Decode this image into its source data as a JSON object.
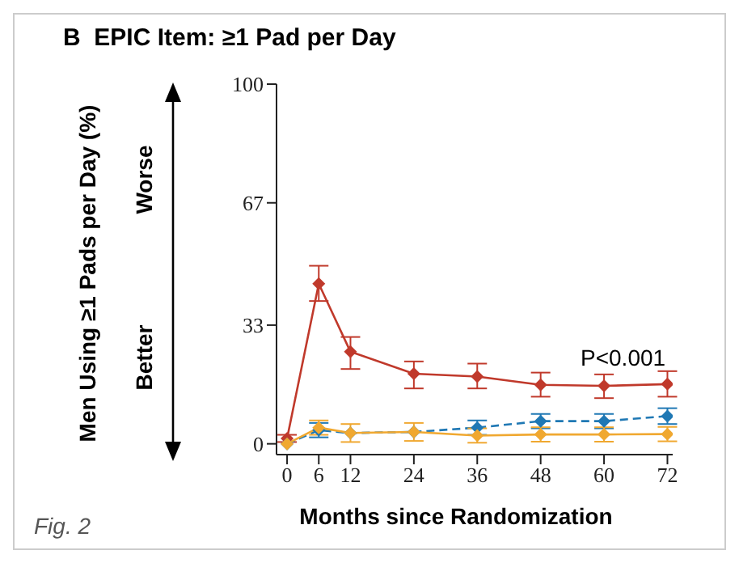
{
  "chart_data": {
    "type": "line",
    "title": "B  EPIC Item: ≥1 Pad per Day",
    "xlabel": "Months since Randomization",
    "annotations": [
      "Men Using ≥1 Pads per Day (%)",
      "Worse",
      "Better",
      "P<0.001",
      "Fig. 2"
    ],
    "x": [
      0,
      6,
      12,
      24,
      36,
      48,
      60,
      72
    ],
    "series": [
      {
        "color": "#c0392b",
        "values": [
          1.5,
          44.5,
          25.6,
          19.5,
          18.7,
          16.4,
          16.1,
          16.6
        ],
        "errors": [
          [
            0.5,
            2.5
          ],
          [
            39.7,
            49.5
          ],
          [
            20.8,
            29.7
          ],
          [
            15.4,
            22.9
          ],
          [
            15.4,
            22.3
          ],
          [
            13.1,
            19.8
          ],
          [
            12.7,
            19.3
          ],
          [
            13.1,
            20.2
          ]
        ],
        "line_style": "solid"
      },
      {
        "color": "#1f78b4",
        "values": [
          0,
          3.8,
          3.0,
          3.3,
          4.5,
          6.3,
          6.3,
          7.7
        ],
        "errors": [
          null,
          2,
          null,
          null,
          2,
          2,
          2,
          2.2
        ],
        "line_style": "dashed"
      },
      {
        "color": "#f0a830",
        "values": [
          0,
          4.5,
          3.0,
          3.3,
          2.3,
          2.6,
          2.6,
          2.7
        ],
        "errors": [
          null,
          2,
          2.5,
          2.5,
          2,
          2,
          2,
          2
        ],
        "line_style": "solid"
      }
    ],
    "xlim": [
      -2,
      73
    ],
    "ylim": [
      -3,
      100
    ],
    "xticks": [
      0,
      6,
      12,
      24,
      36,
      48,
      60,
      72
    ],
    "yticks": [
      0,
      33,
      67,
      100
    ],
    "marker": "diamond",
    "grid": false,
    "legend": false
  }
}
